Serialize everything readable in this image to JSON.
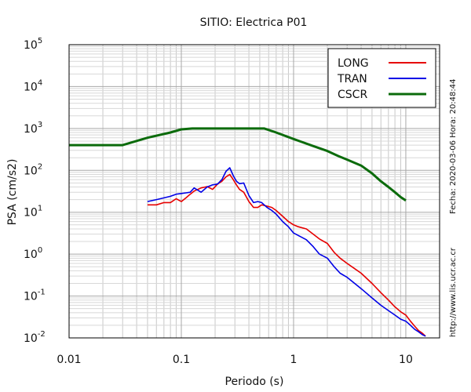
{
  "chart_data": {
    "type": "line",
    "title": "SITIO: Electrica P01",
    "xlabel": "Periodo (s)",
    "ylabel": "PSA (cm/s2)",
    "xscale": "log",
    "yscale": "log",
    "xlim": [
      0.01,
      20
    ],
    "ylim": [
      0.01,
      100000
    ],
    "x_ticks": [
      {
        "value": 0.01,
        "label": "0.01"
      },
      {
        "value": 0.1,
        "label": "0.1"
      },
      {
        "value": 1,
        "label": "1"
      },
      {
        "value": 10,
        "label": "10"
      }
    ],
    "y_ticks": [
      {
        "value": 0.01,
        "base": "10",
        "exp": "-2"
      },
      {
        "value": 0.1,
        "base": "10",
        "exp": "-1"
      },
      {
        "value": 1,
        "base": "10",
        "exp": "0"
      },
      {
        "value": 10,
        "base": "10",
        "exp": "1"
      },
      {
        "value": 100,
        "base": "10",
        "exp": "2"
      },
      {
        "value": 1000,
        "base": "10",
        "exp": "3"
      },
      {
        "value": 10000,
        "base": "10",
        "exp": "4"
      },
      {
        "value": 100000,
        "base": "10",
        "exp": "5"
      }
    ],
    "grid": true,
    "legend_position": "top-right",
    "series": [
      {
        "name": "LONG",
        "color": "#e60000",
        "x": [
          0.05,
          0.06,
          0.07,
          0.08,
          0.09,
          0.1,
          0.11,
          0.12,
          0.13,
          0.15,
          0.17,
          0.19,
          0.21,
          0.23,
          0.25,
          0.27,
          0.29,
          0.31,
          0.33,
          0.36,
          0.4,
          0.44,
          0.48,
          0.52,
          0.58,
          0.64,
          0.7,
          0.8,
          0.9,
          1.0,
          1.1,
          1.3,
          1.5,
          1.7,
          2.0,
          2.3,
          2.6,
          3.0,
          3.5,
          4.0,
          5.0,
          6.0,
          7.0,
          8.0,
          9.0,
          10.0,
          11.0,
          12.0,
          13.0,
          14.0,
          15.0
        ],
        "y": [
          15,
          15,
          17,
          17,
          21,
          18,
          22,
          27,
          32,
          38,
          41,
          35,
          47,
          55,
          70,
          80,
          60,
          45,
          35,
          30,
          18,
          13,
          13,
          15,
          14,
          13,
          11,
          8,
          6,
          5,
          4.5,
          4.0,
          3.0,
          2.3,
          1.8,
          1.1,
          0.8,
          0.6,
          0.45,
          0.35,
          0.2,
          0.12,
          0.08,
          0.055,
          0.042,
          0.035,
          0.025,
          0.019,
          0.015,
          0.013,
          0.011
        ]
      },
      {
        "name": "TRAN",
        "color": "#0000e6",
        "x": [
          0.05,
          0.06,
          0.07,
          0.08,
          0.09,
          0.1,
          0.11,
          0.12,
          0.13,
          0.15,
          0.17,
          0.19,
          0.21,
          0.23,
          0.25,
          0.27,
          0.29,
          0.31,
          0.33,
          0.36,
          0.4,
          0.44,
          0.48,
          0.52,
          0.58,
          0.64,
          0.7,
          0.8,
          0.9,
          1.0,
          1.1,
          1.3,
          1.5,
          1.7,
          2.0,
          2.3,
          2.6,
          3.0,
          3.5,
          4.0,
          5.0,
          6.0,
          7.0,
          8.0,
          9.0,
          10.0,
          11.0,
          12.0,
          13.0,
          14.0,
          15.0
        ],
        "y": [
          18,
          20,
          22,
          24,
          27,
          28,
          29,
          30,
          38,
          30,
          40,
          45,
          47,
          60,
          95,
          115,
          75,
          55,
          48,
          50,
          25,
          17,
          18,
          17,
          13,
          11,
          9,
          6,
          4.5,
          3.2,
          2.8,
          2.2,
          1.5,
          1.0,
          0.8,
          0.5,
          0.35,
          0.28,
          0.2,
          0.15,
          0.09,
          0.06,
          0.045,
          0.035,
          0.028,
          0.025,
          0.02,
          0.016,
          0.014,
          0.012,
          0.011
        ]
      },
      {
        "name": "CSCR",
        "color": "#0b6b0b",
        "x": [
          0.01,
          0.03,
          0.05,
          0.08,
          0.1,
          0.125,
          0.2,
          0.3,
          0.5,
          0.55,
          0.7,
          1.0,
          1.5,
          2.0,
          2.5,
          3.0,
          4.0,
          5.0,
          6.0,
          7.0,
          8.0,
          9.0,
          10.0
        ],
        "y": [
          400,
          400,
          600,
          800,
          950,
          1000,
          1000,
          1000,
          1000,
          1000,
          800,
          560,
          380,
          290,
          220,
          180,
          130,
          85,
          55,
          40,
          30,
          23,
          19
        ]
      }
    ]
  },
  "side_texts": {
    "date": "Fecha: 2020-03-06 Hora: 20:48:44",
    "url": "http://www.lis.ucr.ac.cr"
  }
}
